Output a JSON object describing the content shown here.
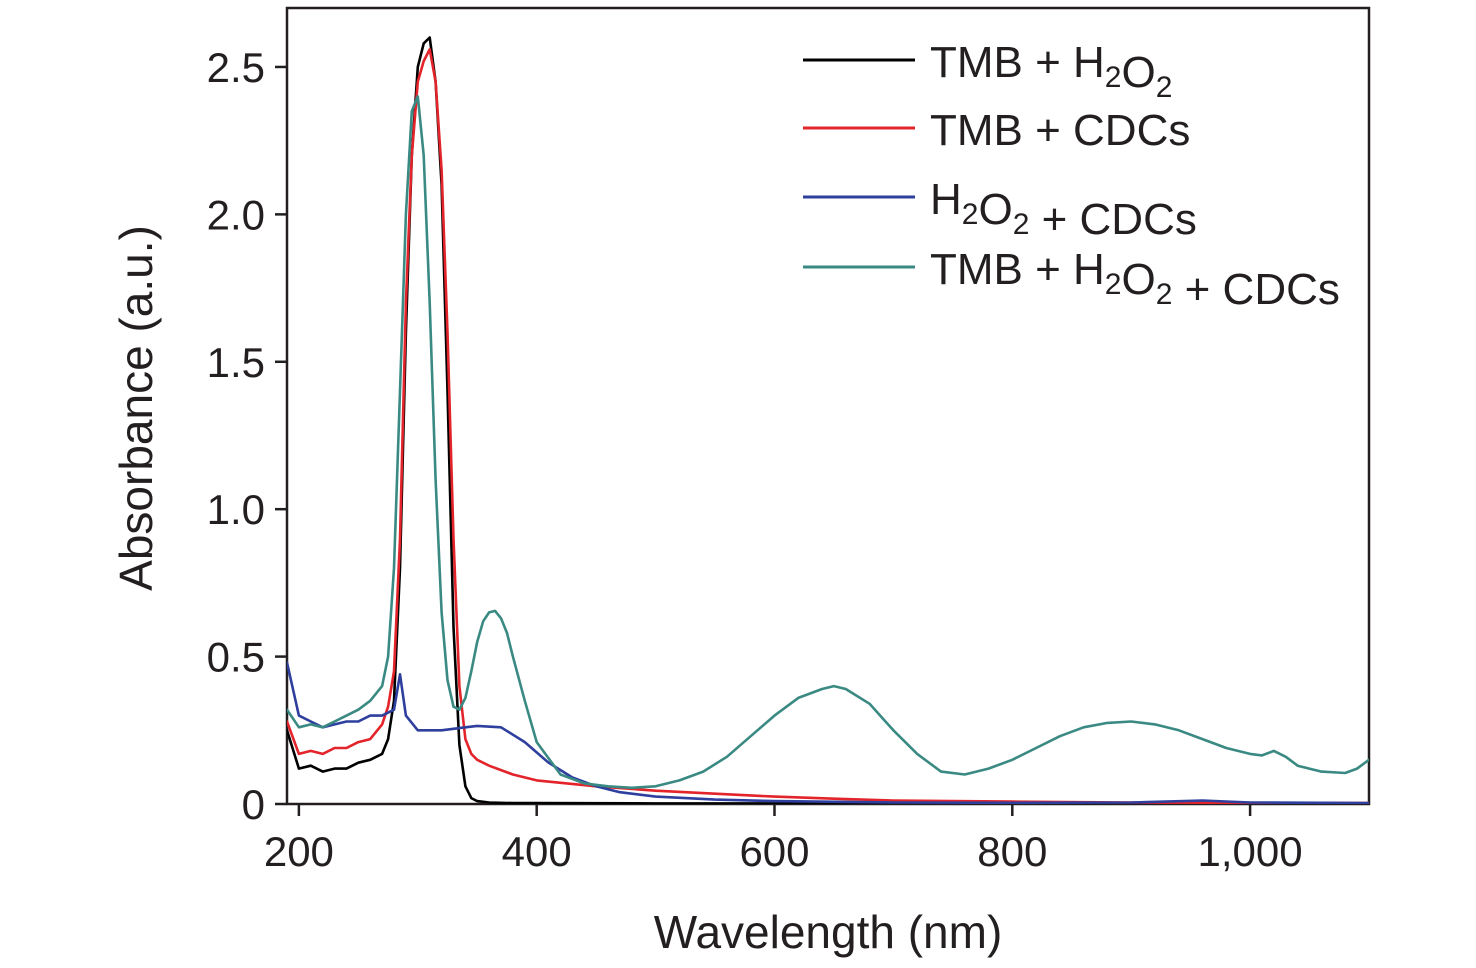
{
  "chart_data": {
    "type": "line",
    "xlabel": "Wavelength (nm)",
    "ylabel": "Absorbance (a.u.)",
    "xlim": [
      190,
      1100
    ],
    "ylim": [
      0,
      2.7
    ],
    "x_ticks": [
      200,
      400,
      600,
      800,
      1000
    ],
    "x_tick_labels": [
      "200",
      "400",
      "600",
      "800",
      "1,000"
    ],
    "y_ticks": [
      0,
      0.5,
      1.0,
      1.5,
      2.0,
      2.5
    ],
    "y_tick_labels": [
      "0",
      "0.5",
      "1.0",
      "1.5",
      "2.0",
      "2.5"
    ],
    "grid": false,
    "legend_position": "top-right",
    "series": [
      {
        "name": "TMB + H2O2",
        "legend": {
          "base": "TMB + H",
          "sub1": "2",
          "mid": "O",
          "sub2": "2",
          "tail": ""
        },
        "color": "#000000",
        "x": [
          190,
          200,
          210,
          220,
          230,
          240,
          250,
          260,
          270,
          275,
          280,
          285,
          290,
          295,
          300,
          305,
          310,
          315,
          320,
          325,
          330,
          335,
          340,
          345,
          350,
          360,
          380,
          400,
          500,
          600,
          700,
          800,
          900,
          1000,
          1100
        ],
        "y": [
          0.25,
          0.12,
          0.13,
          0.11,
          0.12,
          0.12,
          0.14,
          0.15,
          0.17,
          0.22,
          0.35,
          0.8,
          1.6,
          2.2,
          2.5,
          2.58,
          2.6,
          2.45,
          2.1,
          1.4,
          0.6,
          0.2,
          0.06,
          0.02,
          0.01,
          0.005,
          0.003,
          0.003,
          0.002,
          0.002,
          0.002,
          0.002,
          0.002,
          0.002,
          0.002
        ]
      },
      {
        "name": "TMB + CDCs",
        "legend": {
          "base": "TMB + CDCs",
          "sub1": "",
          "mid": "",
          "sub2": "",
          "tail": ""
        },
        "color": "#e3242b",
        "x": [
          190,
          200,
          210,
          220,
          230,
          240,
          250,
          260,
          270,
          275,
          280,
          285,
          290,
          295,
          300,
          305,
          310,
          315,
          320,
          325,
          330,
          335,
          340,
          345,
          350,
          360,
          380,
          400,
          450,
          500,
          550,
          600,
          650,
          700,
          800,
          900,
          1000,
          1100
        ],
        "y": [
          0.28,
          0.17,
          0.18,
          0.17,
          0.19,
          0.19,
          0.21,
          0.22,
          0.27,
          0.33,
          0.45,
          0.9,
          1.7,
          2.2,
          2.45,
          2.52,
          2.56,
          2.45,
          2.15,
          1.6,
          0.9,
          0.4,
          0.22,
          0.17,
          0.15,
          0.13,
          0.1,
          0.08,
          0.06,
          0.045,
          0.035,
          0.025,
          0.018,
          0.012,
          0.008,
          0.005,
          0.004,
          0.003
        ]
      },
      {
        "name": "H2O2 + CDCs",
        "legend": {
          "base": "H",
          "sub1": "2",
          "mid": "O",
          "sub2": "2",
          "tail": " + CDCs"
        },
        "color": "#2e3f9e",
        "x": [
          190,
          200,
          210,
          220,
          230,
          240,
          250,
          260,
          270,
          280,
          285,
          290,
          300,
          320,
          340,
          350,
          370,
          390,
          410,
          430,
          450,
          470,
          500,
          550,
          600,
          700,
          800,
          900,
          960,
          1000,
          1100
        ],
        "y": [
          0.48,
          0.3,
          0.28,
          0.26,
          0.27,
          0.28,
          0.28,
          0.3,
          0.3,
          0.32,
          0.44,
          0.3,
          0.25,
          0.25,
          0.26,
          0.265,
          0.26,
          0.21,
          0.14,
          0.09,
          0.06,
          0.04,
          0.025,
          0.015,
          0.01,
          0.005,
          0.004,
          0.005,
          0.012,
          0.005,
          0.003
        ]
      },
      {
        "name": "TMB + H2O2 + CDCs",
        "legend": {
          "base": "TMB + H",
          "sub1": "2",
          "mid": "O",
          "sub2": "2",
          "tail": " + CDCs"
        },
        "color": "#3a8a83",
        "x": [
          190,
          200,
          210,
          220,
          230,
          240,
          250,
          260,
          270,
          275,
          280,
          285,
          290,
          295,
          300,
          305,
          310,
          315,
          320,
          325,
          330,
          335,
          340,
          345,
          350,
          355,
          360,
          365,
          370,
          375,
          380,
          390,
          400,
          420,
          440,
          460,
          480,
          500,
          520,
          540,
          560,
          580,
          600,
          620,
          640,
          650,
          660,
          680,
          700,
          720,
          740,
          760,
          780,
          800,
          820,
          840,
          860,
          880,
          900,
          920,
          940,
          960,
          980,
          1000,
          1010,
          1020,
          1030,
          1040,
          1060,
          1080,
          1090,
          1100
        ],
        "y": [
          0.32,
          0.26,
          0.27,
          0.26,
          0.28,
          0.3,
          0.32,
          0.35,
          0.4,
          0.5,
          0.8,
          1.4,
          2.0,
          2.35,
          2.4,
          2.2,
          1.7,
          1.1,
          0.65,
          0.42,
          0.33,
          0.32,
          0.36,
          0.45,
          0.55,
          0.62,
          0.65,
          0.655,
          0.63,
          0.58,
          0.5,
          0.35,
          0.21,
          0.1,
          0.07,
          0.06,
          0.055,
          0.06,
          0.08,
          0.11,
          0.16,
          0.23,
          0.3,
          0.36,
          0.39,
          0.4,
          0.39,
          0.34,
          0.25,
          0.17,
          0.11,
          0.1,
          0.12,
          0.15,
          0.19,
          0.23,
          0.26,
          0.275,
          0.28,
          0.27,
          0.25,
          0.22,
          0.19,
          0.17,
          0.165,
          0.18,
          0.16,
          0.13,
          0.11,
          0.105,
          0.12,
          0.15
        ]
      }
    ]
  }
}
